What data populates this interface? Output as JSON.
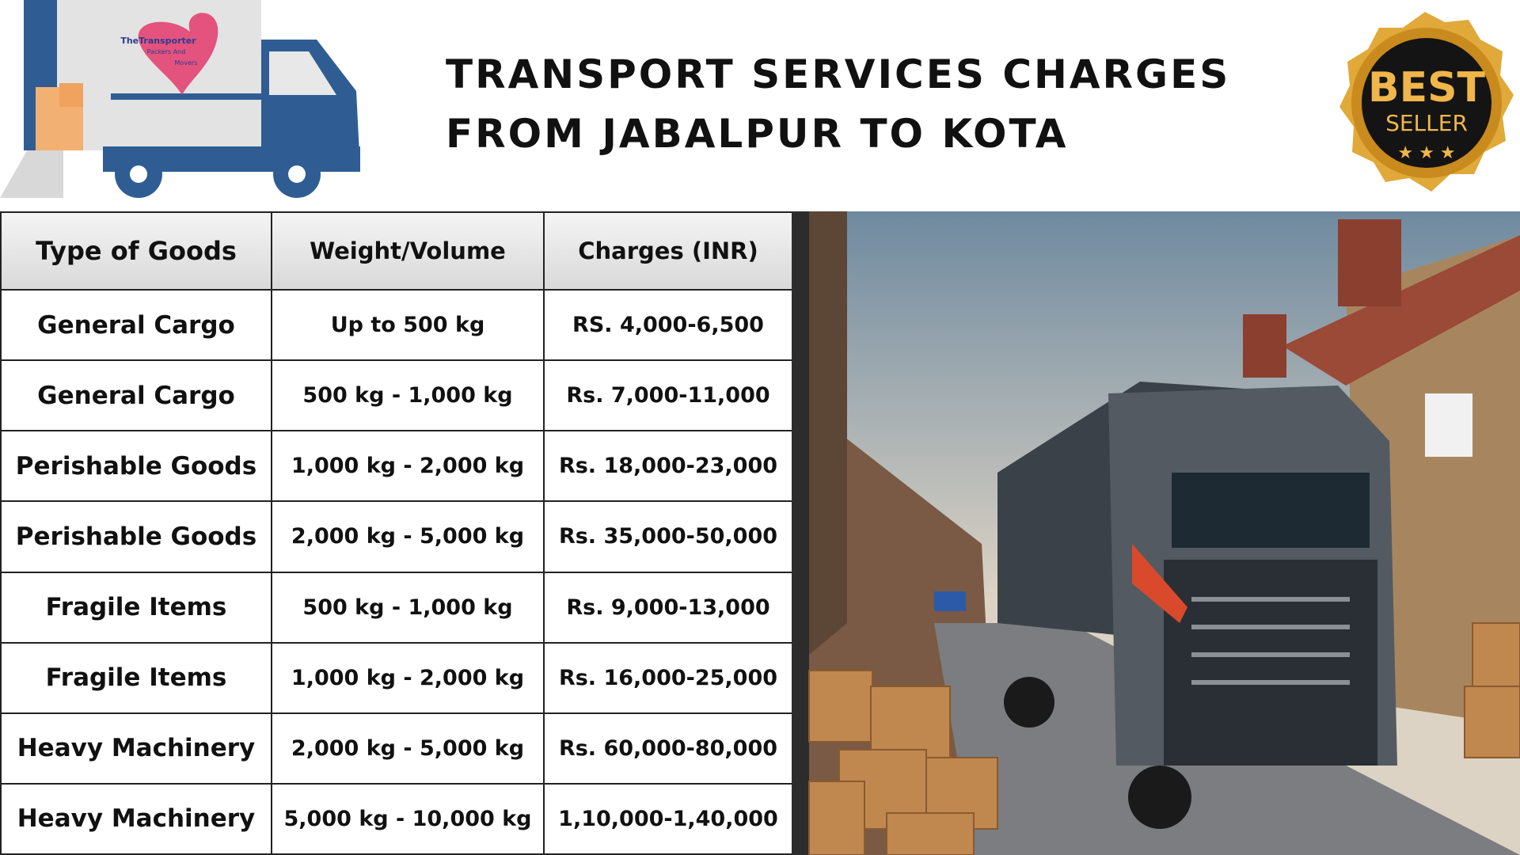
{
  "header": {
    "title_lines": [
      "TRANSPORT SERVICES CHARGES",
      "FROM JABALPUR TO KOTA"
    ],
    "logo_text": [
      "TheTransporter",
      "Packers And",
      "Movers"
    ],
    "badge": [
      "BEST",
      "SELLER"
    ]
  },
  "table": {
    "columns": [
      "Type of Goods",
      "Weight/Volume",
      "Charges (INR)"
    ],
    "rows": [
      [
        "General Cargo",
        "Up to 500 kg",
        "RS. 4,000-6,500"
      ],
      [
        "General Cargo",
        "500 kg - 1,000 kg",
        "Rs. 7,000-11,000"
      ],
      [
        "Perishable Goods",
        "1,000 kg - 2,000 kg",
        "Rs. 18,000-23,000"
      ],
      [
        "Perishable Goods",
        "2,000 kg - 5,000 kg",
        "Rs. 35,000-50,000"
      ],
      [
        "Fragile Items",
        "500 kg - 1,000 kg",
        "Rs. 9,000-13,000"
      ],
      [
        "Fragile Items",
        "1,000 kg - 2,000 kg",
        "Rs. 16,000-25,000"
      ],
      [
        "Heavy Machinery",
        "2,000 kg - 5,000 kg",
        "Rs. 60,000-80,000"
      ],
      [
        "Heavy Machinery",
        "5,000 kg - 10,000 kg",
        "1,10,000-1,40,000"
      ]
    ]
  }
}
